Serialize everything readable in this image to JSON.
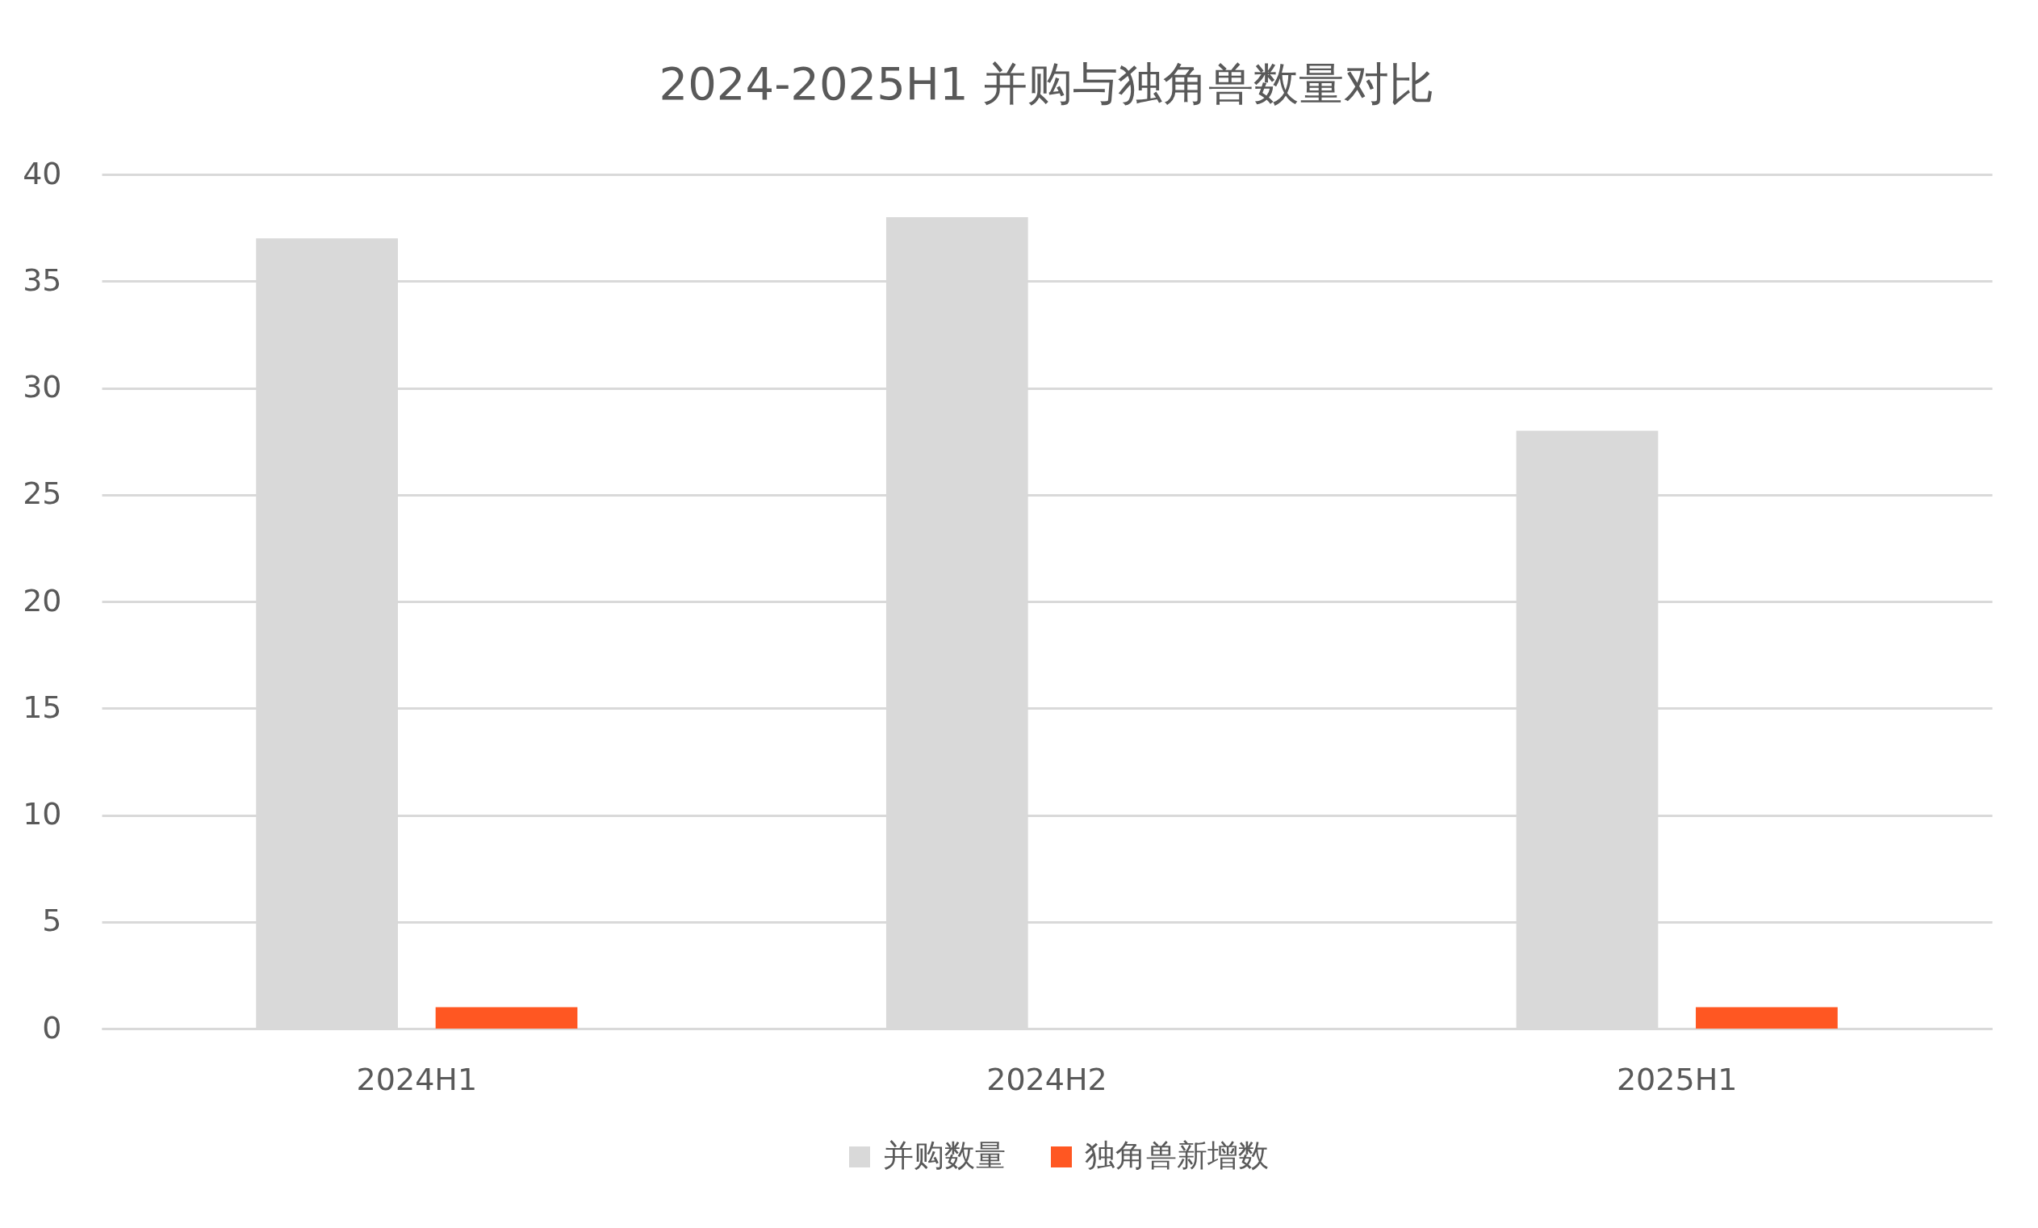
{
  "chart_data": {
    "type": "bar",
    "title": "2024-2025H1 并购与独角兽数量对比",
    "categories": [
      "2024H1",
      "2024H2",
      "2025H1"
    ],
    "series": [
      {
        "name": "并购数量",
        "color": "#d9d9d9",
        "values": [
          37,
          38,
          28
        ]
      },
      {
        "name": "独角兽新增数",
        "color": "#ff5722",
        "values": [
          1,
          0,
          1
        ]
      }
    ],
    "ylim": [
      0,
      40
    ],
    "yticks": [
      0,
      5,
      10,
      15,
      20,
      25,
      30,
      35,
      40
    ],
    "grid": "y",
    "legend": "bottom"
  }
}
